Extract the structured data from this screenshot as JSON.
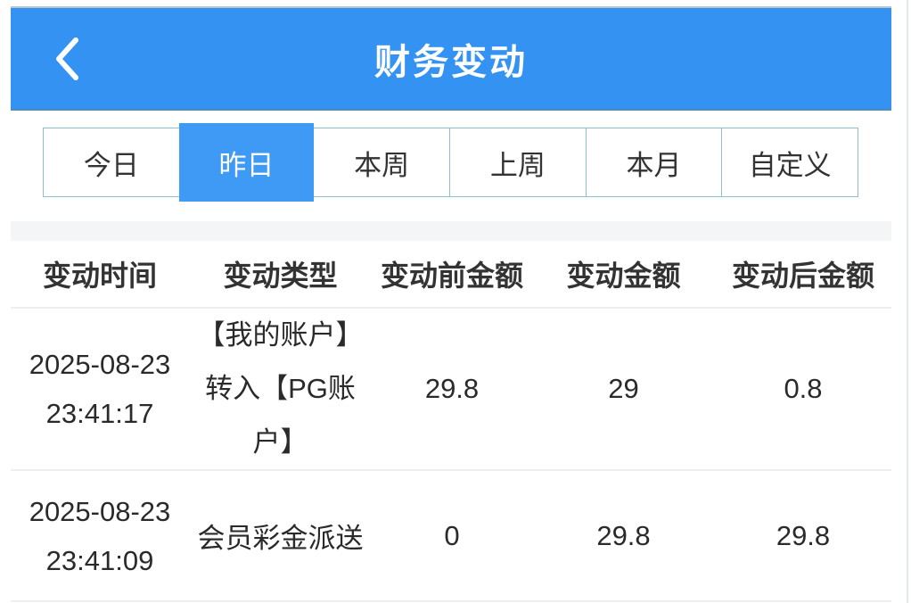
{
  "header": {
    "title": "财务变动",
    "back_icon": "chevron-left"
  },
  "colors": {
    "appbar_blue": "#3493f2",
    "active_tab_blue": "#3e9af4",
    "tab_border": "#8fbfcf",
    "text_dark": "#333333",
    "row_border": "#efefef",
    "band_gray": "#f4f5f6"
  },
  "tabs": {
    "items": [
      {
        "label": "今日",
        "active": false
      },
      {
        "label": "昨日",
        "active": true
      },
      {
        "label": "本周",
        "active": false
      },
      {
        "label": "上周",
        "active": false
      },
      {
        "label": "本月",
        "active": false
      },
      {
        "label": "自定义",
        "active": false
      }
    ]
  },
  "table": {
    "columns": [
      "变动时间",
      "变动类型",
      "变动前金额",
      "变动金额",
      "变动后金额"
    ],
    "rows": [
      {
        "date": "2025-08-23",
        "time": "23:41:17",
        "type": "【我的账户】\n转入【PG账\n户】",
        "before": "29.8",
        "amount": "29",
        "after": "0.8"
      },
      {
        "date": "2025-08-23",
        "time": "23:41:09",
        "type": "会员彩金派送",
        "before": "0",
        "amount": "29.8",
        "after": "29.8"
      }
    ]
  }
}
